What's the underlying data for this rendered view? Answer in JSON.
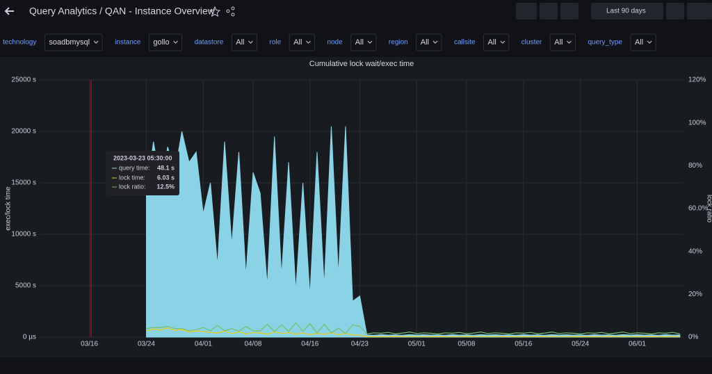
{
  "header": {
    "title": "Query Analytics / QAN - Instance Overview",
    "time_range": "Last 90 days"
  },
  "variables": [
    {
      "label": "technology",
      "value": "soadbmysql"
    },
    {
      "label": "instance",
      "value": "gollo"
    },
    {
      "label": "datastore",
      "value": "All"
    },
    {
      "label": "role",
      "value": "All"
    },
    {
      "label": "node",
      "value": "All"
    },
    {
      "label": "region",
      "value": "All"
    },
    {
      "label": "callsite",
      "value": "All"
    },
    {
      "label": "cluster",
      "value": "All"
    },
    {
      "label": "query_type",
      "value": "All"
    }
  ],
  "tooltip": {
    "time": "2023-03-23 05:30:00",
    "items": [
      {
        "label": "query time:",
        "value": "48.1 s"
      },
      {
        "label": "lock time:",
        "value": "6.03 s"
      },
      {
        "label": "lock ratio:",
        "value": "12.5%"
      }
    ]
  },
  "chart_data": {
    "type": "line",
    "title": "Cumulative lock wait/exec time",
    "y_label": "exec/lock time",
    "y2_label": "lock ratio",
    "x": [
      83,
      84,
      85,
      86,
      87,
      88,
      89,
      90,
      91,
      92,
      93,
      94,
      95,
      96,
      97,
      98,
      99,
      100,
      101,
      102,
      103,
      104,
      105,
      106,
      107,
      108,
      109,
      110,
      111,
      112,
      113,
      114,
      115,
      116,
      117,
      118,
      119,
      120,
      121,
      122,
      123,
      124,
      125,
      126,
      127,
      128,
      129,
      130,
      131,
      132,
      133,
      134,
      135,
      136,
      137,
      138,
      139,
      140,
      141,
      142,
      143,
      144,
      145,
      146,
      147,
      148,
      149,
      150,
      151,
      152,
      153,
      154,
      155,
      156,
      157,
      158
    ],
    "xlim": [
      68,
      158.5
    ],
    "xticks": [
      {
        "value": 75,
        "label": "03/16"
      },
      {
        "value": 83,
        "label": "03/24"
      },
      {
        "value": 91,
        "label": "04/01"
      },
      {
        "value": 98,
        "label": "04/08"
      },
      {
        "value": 106,
        "label": "04/16"
      },
      {
        "value": 113,
        "label": "04/23"
      },
      {
        "value": 121,
        "label": "05/01"
      },
      {
        "value": 128,
        "label": "05/08"
      },
      {
        "value": 136,
        "label": "05/16"
      },
      {
        "value": 144,
        "label": "05/24"
      },
      {
        "value": 152,
        "label": "06/01"
      }
    ],
    "ylim": [
      0,
      25000
    ],
    "yticks": [
      {
        "value": 0,
        "label": "0 µs"
      },
      {
        "value": 5000,
        "label": "5000 s"
      },
      {
        "value": 10000,
        "label": "10000 s"
      },
      {
        "value": 15000,
        "label": "15000 s"
      },
      {
        "value": 20000,
        "label": "20000 s"
      },
      {
        "value": 25000,
        "label": "25000 s"
      }
    ],
    "y2lim": [
      0,
      120
    ],
    "y2ticks": [
      {
        "value": 0,
        "label": "0%"
      },
      {
        "value": 20,
        "label": "20%"
      },
      {
        "value": 40,
        "label": "40%"
      },
      {
        "value": 60,
        "label": "60.0%"
      },
      {
        "value": 80,
        "label": "80%"
      },
      {
        "value": 100,
        "label": "100%"
      },
      {
        "value": 120,
        "label": "120%"
      }
    ],
    "grid": true,
    "series": [
      {
        "name": "query time",
        "color": "#8ad3e6",
        "fill": true,
        "values": [
          14000,
          19000,
          15000,
          18500,
          16000,
          20000,
          17000,
          18000,
          12000,
          15000,
          7000,
          19000,
          9000,
          18000,
          6000,
          16000,
          14000,
          5000,
          19500,
          6000,
          17000,
          4500,
          15000,
          4000,
          18000,
          5000,
          20500,
          6000,
          20500,
          3500,
          4000,
          220,
          180,
          250,
          200,
          230,
          190,
          260,
          210,
          240,
          200,
          220,
          180,
          250,
          200,
          230,
          190,
          260,
          210,
          240,
          200,
          220,
          180,
          250,
          200,
          230,
          190,
          260,
          210,
          240,
          200,
          220,
          180,
          250,
          200,
          230,
          190,
          260,
          210,
          240,
          200,
          220,
          180,
          250,
          200,
          230
        ]
      },
      {
        "name": "lock time",
        "color": "#f2cc0c",
        "values": [
          600,
          800,
          700,
          900,
          650,
          750,
          500,
          600,
          550,
          450,
          400,
          600,
          350,
          500,
          300,
          450,
          400,
          300,
          500,
          350,
          450,
          300,
          400,
          250,
          350,
          300,
          400,
          250,
          350,
          200,
          200,
          40,
          50,
          35,
          45,
          60,
          40,
          55,
          45,
          50,
          40,
          40,
          50,
          35,
          45,
          60,
          40,
          55,
          45,
          50,
          40,
          40,
          50,
          35,
          45,
          60,
          40,
          55,
          45,
          50,
          40,
          40,
          50,
          35,
          45,
          60,
          40,
          55,
          45,
          50,
          40,
          40,
          50,
          35,
          45,
          60
        ]
      },
      {
        "name": "lock ratio",
        "color": "#73bf69",
        "axis": "y2",
        "values": [
          4,
          4.5,
          4.5,
          5,
          4,
          4,
          3,
          3.5,
          4.5,
          3,
          5.5,
          3,
          4,
          2.8,
          5,
          3,
          2.9,
          6,
          2.6,
          5.8,
          2.7,
          6.7,
          2.7,
          6.3,
          1.9,
          6,
          2,
          4.2,
          1.7,
          5.7,
          5,
          1.5,
          2,
          1.8,
          2.2,
          1.6,
          1.9,
          2.4,
          1.7,
          2,
          1.8,
          1.5,
          2,
          1.8,
          2.2,
          1.6,
          1.9,
          2.4,
          1.7,
          2,
          1.8,
          1.5,
          2,
          1.8,
          2.2,
          1.6,
          1.9,
          2.4,
          1.7,
          2,
          1.8,
          1.5,
          2,
          1.8,
          2.2,
          1.6,
          1.9,
          2.4,
          1.7,
          2,
          1.8,
          1.5,
          2,
          1.8,
          2.2,
          1.6
        ]
      }
    ]
  }
}
